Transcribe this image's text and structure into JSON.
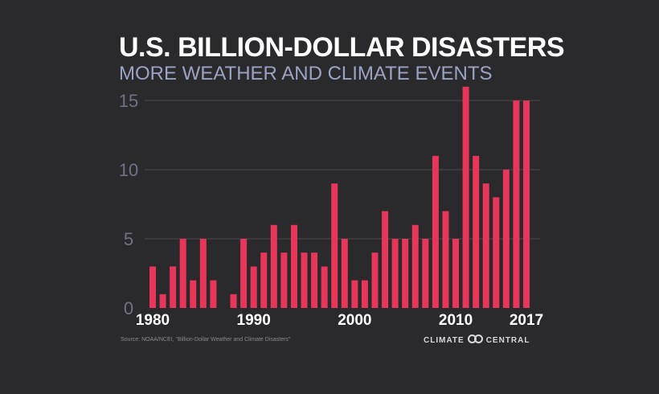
{
  "chart_data": {
    "type": "bar",
    "title": "U.S. BILLION-DOLLAR DISASTERS",
    "subtitle": "MORE WEATHER AND CLIMATE EVENTS",
    "xlabel": "",
    "ylabel": "",
    "categories": [
      1980,
      1981,
      1982,
      1983,
      1984,
      1985,
      1986,
      1987,
      1988,
      1989,
      1990,
      1991,
      1992,
      1993,
      1994,
      1995,
      1996,
      1997,
      1998,
      1999,
      2000,
      2001,
      2002,
      2003,
      2004,
      2005,
      2006,
      2007,
      2008,
      2009,
      2010,
      2011,
      2012,
      2013,
      2014,
      2015,
      2016,
      2017
    ],
    "values": [
      3,
      1,
      3,
      5,
      2,
      5,
      2,
      0,
      1,
      5,
      3,
      4,
      6,
      4,
      6,
      4,
      4,
      3,
      9,
      5,
      2,
      2,
      4,
      7,
      5,
      5,
      6,
      5,
      11,
      7,
      5,
      16,
      11,
      9,
      8,
      10,
      15,
      15
    ],
    "ylim": [
      0,
      16
    ],
    "yticks": [
      "0",
      "5",
      "10",
      "15"
    ],
    "xticks": [
      "1980",
      "1990",
      "2000",
      "2010",
      "2017"
    ],
    "grid": true,
    "bar_color": "#e8365b",
    "source": "Source: NOAA/NCEI, \"Billion-Dollar Weather and Climate Disasters\"",
    "brand_left": "CLIMATE",
    "brand_right": "CENTRAL"
  }
}
